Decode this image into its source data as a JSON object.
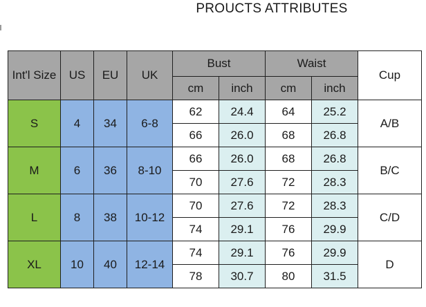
{
  "title": "PROUCTS ATTRIBUTES",
  "headers": {
    "intl": "Int'l Size",
    "us": "US",
    "eu": "EU",
    "uk": "UK",
    "bust": "Bust",
    "waist": "Waist",
    "cup": "Cup",
    "bust_cm": "cm",
    "bust_inch": "inch",
    "waist_cm": "cm",
    "waist_inch": "inch"
  },
  "sizes": [
    {
      "intl": "S",
      "us": "4",
      "eu": "34",
      "uk": "6-8",
      "cup": "A/B",
      "rows": [
        {
          "bust_cm": "62",
          "bust_inch": "24.4",
          "waist_cm": "64",
          "waist_inch": "25.2"
        },
        {
          "bust_cm": "66",
          "bust_inch": "26.0",
          "waist_cm": "68",
          "waist_inch": "26.8"
        }
      ]
    },
    {
      "intl": "M",
      "us": "6",
      "eu": "36",
      "uk": "8-10",
      "cup": "B/C",
      "rows": [
        {
          "bust_cm": "66",
          "bust_inch": "26.0",
          "waist_cm": "68",
          "waist_inch": "26.8"
        },
        {
          "bust_cm": "70",
          "bust_inch": "27.6",
          "waist_cm": "72",
          "waist_inch": "28.3"
        }
      ]
    },
    {
      "intl": "L",
      "us": "8",
      "eu": "38",
      "uk": "10-12",
      "cup": "C/D",
      "rows": [
        {
          "bust_cm": "70",
          "bust_inch": "27.6",
          "waist_cm": "72",
          "waist_inch": "28.3"
        },
        {
          "bust_cm": "74",
          "bust_inch": "29.1",
          "waist_cm": "76",
          "waist_inch": "29.9"
        }
      ]
    },
    {
      "intl": "XL",
      "us": "10",
      "eu": "40",
      "uk": "12-14",
      "cup": "D",
      "rows": [
        {
          "bust_cm": "74",
          "bust_inch": "29.1",
          "waist_cm": "76",
          "waist_inch": "29.9"
        },
        {
          "bust_cm": "78",
          "bust_inch": "30.7",
          "waist_cm": "80",
          "waist_inch": "31.5"
        }
      ]
    }
  ],
  "colors": {
    "header_gray": "#a6a6a6",
    "intl_green": "#8bc34a",
    "size_blue": "#8fb4e3",
    "inch_aqua": "#dbeff0"
  }
}
